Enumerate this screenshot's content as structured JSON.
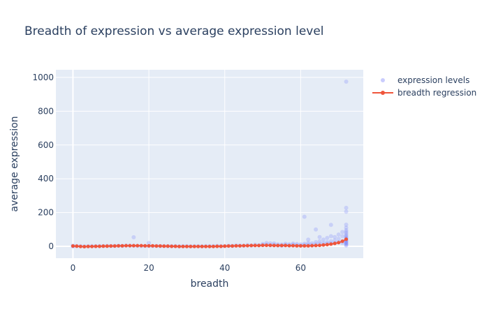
{
  "colors": {
    "plot_bg": "#e5ecf6",
    "grid": "#ffffff",
    "text": "#2a3f5f",
    "scatter": "#636efa",
    "regression": "#ef553b"
  },
  "chart_data": {
    "type": "scatter",
    "title": "Breadth of expression vs average expression level",
    "xlabel": "breadth",
    "ylabel": "average expression",
    "xlim": [
      -4.5,
      76.5
    ],
    "ylim": [
      -70,
      1045
    ],
    "xticks": [
      0,
      20,
      40,
      60
    ],
    "yticks": [
      0,
      200,
      400,
      600,
      800,
      1000
    ],
    "grid": true,
    "legend_position": "right",
    "series": [
      {
        "name": "expression levels",
        "mode": "markers",
        "opacity": 0.22,
        "points": [
          [
            0,
            1
          ],
          [
            0,
            4
          ],
          [
            0,
            0
          ],
          [
            1,
            2
          ],
          [
            2,
            1
          ],
          [
            3,
            0
          ],
          [
            4,
            1
          ],
          [
            5,
            2
          ],
          [
            6,
            1
          ],
          [
            7,
            2
          ],
          [
            8,
            2
          ],
          [
            9,
            3
          ],
          [
            10,
            2
          ],
          [
            11,
            3
          ],
          [
            12,
            4
          ],
          [
            13,
            3
          ],
          [
            14,
            5
          ],
          [
            15,
            4
          ],
          [
            16,
            54
          ],
          [
            16,
            4
          ],
          [
            17,
            3
          ],
          [
            18,
            2
          ],
          [
            19,
            3
          ],
          [
            20,
            20
          ],
          [
            20,
            2
          ],
          [
            21,
            2
          ],
          [
            22,
            3
          ],
          [
            23,
            1
          ],
          [
            24,
            2
          ],
          [
            25,
            1
          ],
          [
            26,
            1
          ],
          [
            27,
            2
          ],
          [
            28,
            0
          ],
          [
            29,
            1
          ],
          [
            30,
            1
          ],
          [
            31,
            0
          ],
          [
            32,
            1
          ],
          [
            33,
            1
          ],
          [
            34,
            0
          ],
          [
            35,
            2
          ],
          [
            36,
            1
          ],
          [
            37,
            2
          ],
          [
            38,
            3
          ],
          [
            39,
            1
          ],
          [
            40,
            2
          ],
          [
            41,
            4
          ],
          [
            42,
            3
          ],
          [
            43,
            6
          ],
          [
            44,
            5
          ],
          [
            45,
            4
          ],
          [
            46,
            8
          ],
          [
            47,
            5
          ],
          [
            48,
            10
          ],
          [
            49,
            7
          ],
          [
            50,
            14
          ],
          [
            50,
            8
          ],
          [
            51,
            20
          ],
          [
            51,
            10
          ],
          [
            52,
            18
          ],
          [
            52,
            6
          ],
          [
            53,
            9
          ],
          [
            53,
            17
          ],
          [
            54,
            5
          ],
          [
            54,
            12
          ],
          [
            55,
            11
          ],
          [
            55,
            4
          ],
          [
            56,
            8
          ],
          [
            56,
            15
          ],
          [
            57,
            6
          ],
          [
            57,
            12
          ],
          [
            58,
            10
          ],
          [
            58,
            16
          ],
          [
            59,
            7
          ],
          [
            59,
            14
          ],
          [
            60,
            5
          ],
          [
            60,
            12
          ],
          [
            61,
            175
          ],
          [
            61,
            8
          ],
          [
            61,
            15
          ],
          [
            62,
            40
          ],
          [
            62,
            10
          ],
          [
            62,
            20
          ],
          [
            63,
            8
          ],
          [
            63,
            18
          ],
          [
            64,
            100
          ],
          [
            64,
            12
          ],
          [
            64,
            25
          ],
          [
            65,
            55
          ],
          [
            65,
            15
          ],
          [
            65,
            30
          ],
          [
            66,
            10
          ],
          [
            66,
            20
          ],
          [
            66,
            40
          ],
          [
            67,
            15
          ],
          [
            67,
            25
          ],
          [
            67,
            50
          ],
          [
            68,
            127
          ],
          [
            68,
            18
          ],
          [
            68,
            30
          ],
          [
            68,
            60
          ],
          [
            69,
            20
          ],
          [
            69,
            35
          ],
          [
            69,
            55
          ],
          [
            70,
            25
          ],
          [
            70,
            45
          ],
          [
            70,
            70
          ],
          [
            71,
            30
          ],
          [
            71,
            60
          ],
          [
            71,
            85
          ],
          [
            71,
            20
          ],
          [
            72,
            975
          ],
          [
            72,
            228
          ],
          [
            72,
            205
          ],
          [
            72,
            128
          ],
          [
            72,
            110
          ],
          [
            72,
            95
          ],
          [
            72,
            85
          ],
          [
            72,
            75
          ],
          [
            72,
            65
          ],
          [
            72,
            58
          ],
          [
            72,
            50
          ],
          [
            72,
            45
          ],
          [
            72,
            40
          ],
          [
            72,
            35
          ],
          [
            72,
            30
          ],
          [
            72,
            25
          ],
          [
            72,
            20
          ],
          [
            72,
            15
          ],
          [
            72,
            10
          ],
          [
            72,
            5
          ]
        ]
      },
      {
        "name": "breadth regression",
        "mode": "lines+markers",
        "x": [
          0,
          1,
          2,
          3,
          4,
          5,
          6,
          7,
          8,
          9,
          10,
          11,
          12,
          13,
          14,
          15,
          16,
          17,
          18,
          19,
          20,
          21,
          22,
          23,
          24,
          25,
          26,
          27,
          28,
          29,
          30,
          31,
          32,
          33,
          34,
          35,
          36,
          37,
          38,
          39,
          40,
          41,
          42,
          43,
          44,
          45,
          46,
          47,
          48,
          49,
          50,
          51,
          52,
          53,
          54,
          55,
          56,
          57,
          58,
          59,
          60,
          61,
          62,
          63,
          64,
          65,
          66,
          67,
          68,
          69,
          70,
          71,
          72
        ],
        "y": [
          2,
          1,
          -1,
          -2,
          -1,
          -1,
          0,
          0,
          1,
          1,
          2,
          2,
          3,
          3,
          4,
          4,
          4,
          4,
          4,
          3,
          3,
          3,
          2,
          2,
          1,
          1,
          0,
          0,
          -1,
          -1,
          -1,
          -1,
          -1,
          -1,
          -1,
          -1,
          -1,
          -1,
          0,
          0,
          1,
          2,
          2,
          3,
          3,
          4,
          4,
          5,
          5,
          5,
          6,
          6,
          6,
          5,
          5,
          5,
          5,
          4,
          4,
          3,
          3,
          3,
          3,
          4,
          5,
          6,
          8,
          10,
          13,
          17,
          22,
          30,
          42
        ]
      }
    ]
  }
}
